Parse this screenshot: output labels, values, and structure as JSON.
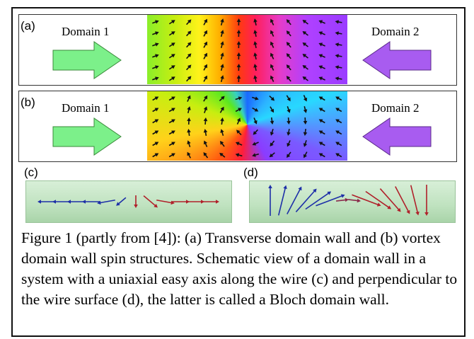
{
  "figure": {
    "panel_a": {
      "label": "(a)",
      "left_domain": "Domain 1",
      "right_domain": "Domain 2"
    },
    "panel_b": {
      "label": "(b)",
      "left_domain": "Domain 1",
      "right_domain": "Domain 2"
    },
    "panel_c": {
      "label": "(c)"
    },
    "panel_d": {
      "label": "(d)"
    },
    "caption": "Figure 1 (partly from [4]): (a) Transverse domain wall and (b) vortex domain wall spin structures. Schematic view of a domain wall in a system with a uniaxial easy axis along the wire (c) and perpendicular to the wire surface (d), the latter is called a Bloch domain wall."
  },
  "colors": {
    "domain1_arrow": "#7cf08a",
    "domain2_arrow": "#a85cf0",
    "glass": "#c8e8c8",
    "blue_spin": "#1d2fa8",
    "red_spin": "#b0202a"
  }
}
